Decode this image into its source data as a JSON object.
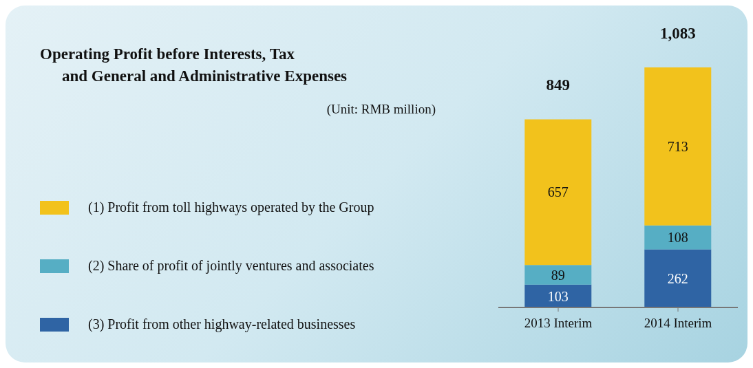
{
  "chart_data": {
    "type": "bar",
    "title": "Operating Profit before Interests, Tax\nand General and Administrative Expenses",
    "annotations": [
      "(Unit: RMB million)"
    ],
    "categories": [
      "2013 Interim",
      "2014 Interim"
    ],
    "stacked": true,
    "data_labels": true,
    "totals": [
      "849",
      "1,083"
    ],
    "legend": "left",
    "grid": false,
    "series": [
      {
        "name": "(3)  Profit from other highway-related businesses",
        "color": "#2f64a4",
        "values": [
          103,
          262
        ]
      },
      {
        "name": "(2)  Share of profit of jointly ventures and associates",
        "color": "#56aec4",
        "values": [
          89,
          108
        ]
      },
      {
        "name": "(1)  Profit from toll highways operated by  the Group",
        "color": "#f2c21c",
        "values": [
          657,
          713
        ]
      }
    ]
  }
}
